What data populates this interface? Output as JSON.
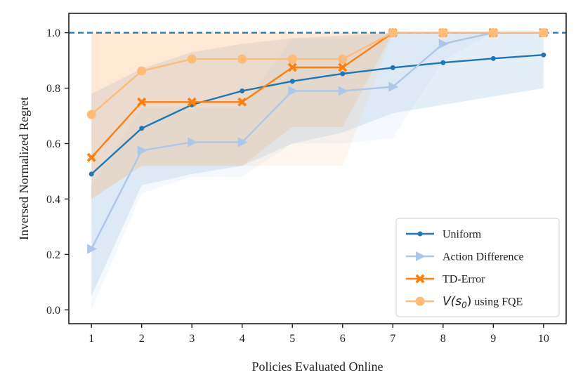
{
  "chart_data": {
    "type": "line",
    "title": "",
    "xlabel": "Policies Evaluated Online",
    "ylabel": "Inversed Normalized Regret",
    "x": [
      1,
      2,
      3,
      4,
      5,
      6,
      7,
      8,
      9,
      10
    ],
    "xlim": [
      0.55,
      10.45
    ],
    "ylim": [
      -0.05,
      1.07
    ],
    "xticks": [
      "1",
      "2",
      "3",
      "4",
      "5",
      "6",
      "7",
      "8",
      "9",
      "10"
    ],
    "yticks": [
      "0.0",
      "0.2",
      "0.4",
      "0.6",
      "0.8",
      "1.0"
    ],
    "reference_line": {
      "y": 1.0,
      "style": "dashed",
      "color": "#1f77b4"
    },
    "legend_position": "bottom-right",
    "series": [
      {
        "name": "Uniform",
        "color": "#1f77b4",
        "marker": "circle-small",
        "values": [
          0.49,
          0.655,
          0.74,
          0.79,
          0.825,
          0.852,
          0.874,
          0.892,
          0.907,
          0.92
        ],
        "band_lower": [
          0.05,
          0.45,
          0.49,
          0.52,
          0.6,
          0.64,
          0.71,
          0.74,
          0.77,
          0.8
        ],
        "band_upper": [
          0.78,
          0.87,
          0.93,
          0.96,
          0.98,
          0.99,
          1.0,
          1.0,
          1.0,
          1.0
        ]
      },
      {
        "name": "Action Difference",
        "color": "#aec7e8",
        "marker": "triangle-right",
        "values": [
          0.22,
          0.575,
          0.605,
          0.605,
          0.79,
          0.79,
          0.805,
          0.96,
          1.0,
          1.0
        ],
        "band_lower": [
          0.0,
          0.42,
          0.48,
          0.48,
          0.6,
          0.6,
          0.62,
          0.9,
          1.0,
          1.0
        ],
        "band_upper": [
          0.45,
          0.73,
          0.73,
          0.73,
          0.98,
          0.98,
          1.0,
          1.0,
          1.0,
          1.0
        ]
      },
      {
        "name": "TD-Error",
        "color": "#ff7f0e",
        "marker": "x-filled",
        "values": [
          0.55,
          0.75,
          0.75,
          0.75,
          0.875,
          0.875,
          1.0,
          1.0,
          1.0,
          1.0
        ],
        "band_lower": [
          0.4,
          0.52,
          0.52,
          0.52,
          0.66,
          0.66,
          1.0,
          1.0,
          1.0,
          1.0
        ],
        "band_upper": [
          1.0,
          1.0,
          1.0,
          1.0,
          1.0,
          1.0,
          1.0,
          1.0,
          1.0,
          1.0
        ]
      },
      {
        "name": "V(s0) using FQE",
        "label_math": "V(s",
        "label_sub": "0",
        "label_close": ")",
        "label_suffix": " using FQE",
        "color": "#ffbb78",
        "marker": "circle-large",
        "values": [
          0.705,
          0.862,
          0.905,
          0.905,
          0.905,
          0.905,
          1.0,
          1.0,
          1.0,
          1.0
        ],
        "band_lower": [
          0.4,
          0.52,
          0.52,
          0.52,
          0.52,
          0.52,
          1.0,
          1.0,
          1.0,
          1.0
        ],
        "band_upper": [
          1.0,
          1.0,
          1.0,
          1.0,
          1.0,
          1.0,
          1.0,
          1.0,
          1.0,
          1.0
        ]
      }
    ]
  }
}
